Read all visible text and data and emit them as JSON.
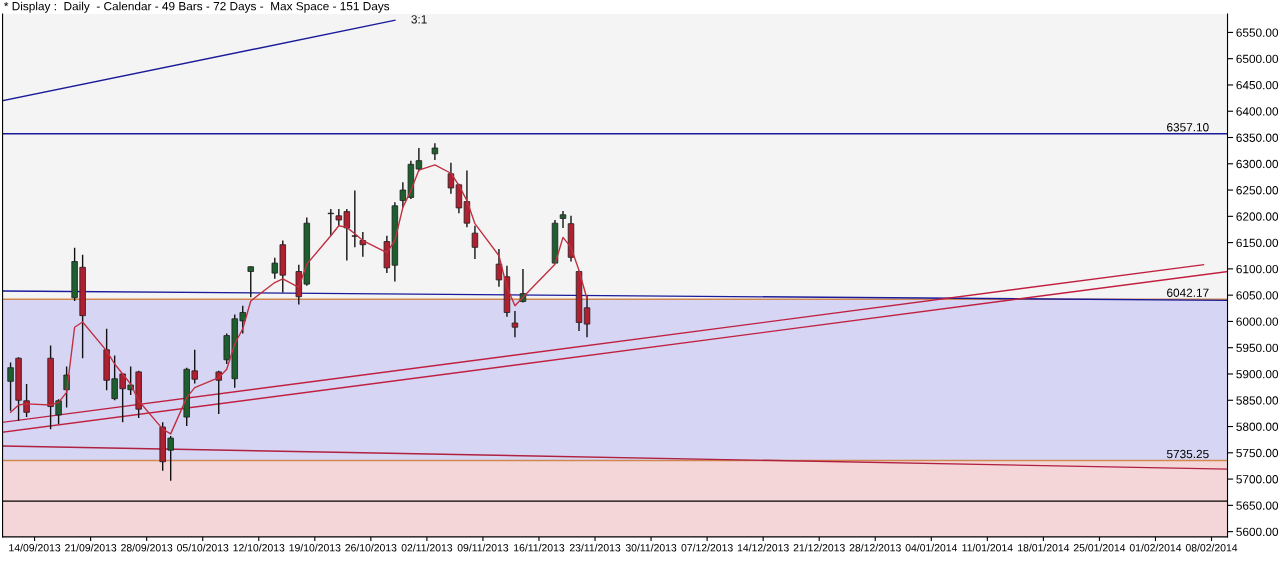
{
  "chart_data": {
    "type": "candlestick",
    "title": "* Display :  Daily  - Calendar - 49 Bars - 72 Days -  Max Space - 151 Days",
    "x": [
      "2013-09-11",
      "2013-09-12",
      "2013-09-13",
      "2013-09-16",
      "2013-09-17",
      "2013-09-18",
      "2013-09-19",
      "2013-09-20",
      "2013-09-23",
      "2013-09-24",
      "2013-09-25",
      "2013-09-26",
      "2013-09-27",
      "2013-09-30",
      "2013-10-01",
      "2013-10-03",
      "2013-10-04",
      "2013-10-07",
      "2013-10-08",
      "2013-10-09",
      "2013-10-10",
      "2013-10-11",
      "2013-10-14",
      "2013-10-15",
      "2013-10-17",
      "2013-10-18",
      "2013-10-21",
      "2013-10-22",
      "2013-10-23",
      "2013-10-24",
      "2013-10-25",
      "2013-10-28",
      "2013-10-29",
      "2013-10-30",
      "2013-10-31",
      "2013-11-01",
      "2013-11-03",
      "2013-11-05",
      "2013-11-06",
      "2013-11-07",
      "2013-11-08",
      "2013-11-11",
      "2013-11-12",
      "2013-11-13",
      "2013-11-14",
      "2013-11-18",
      "2013-11-19",
      "2013-11-20",
      "2013-11-21",
      "2013-11-22"
    ],
    "ohlc": [
      [
        5886,
        5922,
        5830,
        5912
      ],
      [
        5930,
        5932,
        5811,
        5850
      ],
      [
        5849,
        5881,
        5818,
        5827
      ],
      [
        5930,
        5954,
        5795,
        5838
      ],
      [
        5822,
        5852,
        5805,
        5849
      ],
      [
        5870,
        5914,
        5836,
        5898
      ],
      [
        6045,
        6140,
        6039,
        6114
      ],
      [
        6103,
        6127,
        5930,
        6011
      ],
      [
        5946,
        5986,
        5869,
        5888
      ],
      [
        5853,
        5935,
        5850,
        5891
      ],
      [
        5900,
        5902,
        5808,
        5872
      ],
      [
        5870,
        5914,
        5860,
        5879
      ],
      [
        5904,
        5906,
        5816,
        5833
      ],
      [
        5799,
        5808,
        5716,
        5733
      ],
      [
        5755,
        5782,
        5697,
        5778
      ],
      [
        5818,
        5912,
        5801,
        5909
      ],
      [
        5906,
        5946,
        5882,
        5890
      ],
      [
        5904,
        5906,
        5824,
        5888
      ],
      [
        5927,
        5977,
        5919,
        5973
      ],
      [
        5891,
        6013,
        5874,
        6005
      ],
      [
        6001,
        6030,
        5977,
        6017
      ],
      [
        6095,
        6105,
        6046,
        6104
      ],
      [
        6092,
        6121,
        6081,
        6111
      ],
      [
        6146,
        6154,
        6055,
        6088
      ],
      [
        6095,
        6108,
        6032,
        6047
      ],
      [
        6071,
        6198,
        6068,
        6187
      ],
      [
        6205,
        6214,
        6163,
        6206
      ],
      [
        6201,
        6214,
        6182,
        6193
      ],
      [
        6209,
        6214,
        6116,
        6178
      ],
      [
        6163,
        6249,
        6141,
        6162
      ],
      [
        6154,
        6170,
        6123,
        6146
      ],
      [
        6152,
        6163,
        6092,
        6102
      ],
      [
        6107,
        6227,
        6076,
        6220
      ],
      [
        6230,
        6265,
        6217,
        6250
      ],
      [
        6236,
        6306,
        6233,
        6299
      ],
      [
        6290,
        6330,
        6286,
        6306
      ],
      [
        6319,
        6339,
        6307,
        6330
      ],
      [
        6281,
        6302,
        6243,
        6254
      ],
      [
        6260,
        6262,
        6206,
        6216
      ],
      [
        6228,
        6287,
        6179,
        6187
      ],
      [
        6168,
        6182,
        6119,
        6141
      ],
      [
        6109,
        6138,
        6066,
        6079
      ],
      [
        6085,
        6106,
        6009,
        6017
      ],
      [
        5997,
        6020,
        5970,
        5989
      ],
      [
        6038,
        6100,
        6036,
        6053
      ],
      [
        6111,
        6193,
        6110,
        6187
      ],
      [
        6196,
        6210,
        6178,
        6203
      ],
      [
        6186,
        6201,
        6114,
        6122
      ],
      [
        6095,
        6097,
        5982,
        5998
      ],
      [
        6026,
        6049,
        5970,
        5995
      ]
    ],
    "colors": [
      "#1f5f2f",
      "#b02030",
      "#b02030",
      "#b02030",
      "#1f5f2f",
      "#1f5f2f",
      "#1f5f2f",
      "#b02030",
      "#b02030",
      "#1f5f2f",
      "#b02030",
      "#1f5f2f",
      "#b02030",
      "#b02030",
      "#1f5f2f",
      "#1f5f2f",
      "#b02030",
      "#b02030",
      "#1f5f2f",
      "#1f5f2f",
      "#1f5f2f",
      "#1f5f2f",
      "#1f5f2f",
      "#b02030",
      "#b02030",
      "#1f5f2f",
      "#1f5f2f",
      "#b02030",
      "#b02030",
      "#b02030",
      "#b02030",
      "#b02030",
      "#1f5f2f",
      "#1f5f2f",
      "#1f5f2f",
      "#1f5f2f",
      "#1f5f2f",
      "#b02030",
      "#b02030",
      "#b02030",
      "#b02030",
      "#b02030",
      "#b02030",
      "#b02030",
      "#1f5f2f",
      "#1f5f2f",
      "#1f5f2f",
      "#b02030",
      "#b02030",
      "#b02030"
    ],
    "series": [
      {
        "type": "line",
        "color": "#c03040",
        "x": [
          "2013-09-11",
          "2013-09-12",
          "2013-09-13",
          "2013-09-16",
          "2013-09-17",
          "2013-09-18",
          "2013-09-19",
          "2013-09-20",
          "2013-09-23",
          "2013-09-24",
          "2013-09-25",
          "2013-09-26",
          "2013-09-27",
          "2013-09-30",
          "2013-10-01",
          "2013-10-03",
          "2013-10-04",
          "2013-10-07",
          "2013-10-08",
          "2013-10-09",
          "2013-10-10",
          "2013-10-11",
          "2013-10-14",
          "2013-10-15",
          "2013-10-17",
          "2013-10-18",
          "2013-10-21",
          "2013-10-22",
          "2013-10-23",
          "2013-10-24",
          "2013-10-25",
          "2013-10-28",
          "2013-10-29",
          "2013-10-30",
          "2013-10-31",
          "2013-11-01",
          "2013-11-03",
          "2013-11-05",
          "2013-11-06",
          "2013-11-07",
          "2013-11-08",
          "2013-11-11",
          "2013-11-12",
          "2013-11-13",
          "2013-11-14",
          "2013-11-18",
          "2013-11-19",
          "2013-11-20",
          "2013-11-21",
          "2013-11-22"
        ],
        "values": [
          5827,
          5841,
          5843,
          5841,
          5846,
          5865,
          5989,
          5999,
          5944,
          5919,
          5900,
          5881,
          5849,
          5795,
          5786,
          5855,
          5874,
          5893,
          5909,
          5957,
          5986,
          6039,
          6074,
          6081,
          6065,
          6109,
          6163,
          6182,
          6179,
          6167,
          6154,
          6131,
          6154,
          6217,
          6249,
          6288,
          6298,
          6282,
          6259,
          6230,
          6186,
          6125,
          6065,
          6030,
          6046,
          6109,
          6160,
          6141,
          6097,
          6043
        ]
      },
      {
        "type": "line",
        "name": "3:1",
        "color": "#1a1a9a",
        "x": [
          "2013-09-10",
          "2013-10-29"
        ],
        "values": [
          6420,
          6573
        ]
      },
      {
        "type": "line",
        "color": "#1a1a9a",
        "x": [
          "2013-09-10",
          "2014-02-10"
        ],
        "values": [
          6058,
          6040
        ]
      },
      {
        "type": "line",
        "color": "#b02040",
        "x": [
          "2013-09-10",
          "2014-02-10"
        ],
        "values": [
          5763,
          5719
        ]
      },
      {
        "type": "line",
        "color": "#c02040",
        "x": [
          "2013-09-10",
          "2014-02-10"
        ],
        "values": [
          5789,
          6095
        ]
      },
      {
        "type": "line",
        "color": "#c02040",
        "x": [
          "2013-09-10",
          "2014-02-07"
        ],
        "values": [
          5808,
          6108
        ]
      }
    ],
    "bands": [
      {
        "axis": "y",
        "from": 5735.25,
        "to": 6042.17,
        "color": "#d6d6f4"
      },
      {
        "axis": "y",
        "from": 5590,
        "to": 5735.25,
        "color": "#f5d6d8"
      }
    ],
    "ref_lines": [
      {
        "axis": "y",
        "value": 6357.1,
        "color": "#1a1a9a",
        "label": "6357.10"
      },
      {
        "axis": "y",
        "value": 6042.17,
        "color": "#d08850",
        "label": "6042.17"
      },
      {
        "axis": "y",
        "value": 5735.25,
        "color": "#d08850",
        "label": "5735.25"
      },
      {
        "axis": "y",
        "value": 5658,
        "color": "#000000"
      }
    ],
    "xlim": [
      "2013-09-10",
      "2014-02-10"
    ],
    "xticks": [
      {
        "value": "2013-09-14",
        "label": "14/09/2013"
      },
      {
        "value": "2013-09-21",
        "label": "21/09/2013"
      },
      {
        "value": "2013-09-28",
        "label": "28/09/2013"
      },
      {
        "value": "2013-10-05",
        "label": "05/10/2013"
      },
      {
        "value": "2013-10-12",
        "label": "12/10/2013"
      },
      {
        "value": "2013-10-19",
        "label": "19/10/2013"
      },
      {
        "value": "2013-10-26",
        "label": "26/10/2013"
      },
      {
        "value": "2013-11-02",
        "label": "02/11/2013"
      },
      {
        "value": "2013-11-09",
        "label": "09/11/2013"
      },
      {
        "value": "2013-11-16",
        "label": "16/11/2013"
      },
      {
        "value": "2013-11-23",
        "label": "23/11/2013"
      },
      {
        "value": "2013-11-30",
        "label": "30/11/2013"
      },
      {
        "value": "2013-12-07",
        "label": "07/12/2013"
      },
      {
        "value": "2013-12-14",
        "label": "14/12/2013"
      },
      {
        "value": "2013-12-21",
        "label": "21/12/2013"
      },
      {
        "value": "2013-12-28",
        "label": "28/12/2013"
      },
      {
        "value": "2014-01-04",
        "label": "04/01/2014"
      },
      {
        "value": "2014-01-11",
        "label": "11/01/2014"
      },
      {
        "value": "2014-01-18",
        "label": "18/01/2014"
      },
      {
        "value": "2014-01-25",
        "label": "25/01/2014"
      },
      {
        "value": "2014-02-01",
        "label": "01/02/2014"
      },
      {
        "value": "2014-02-08",
        "label": "08/02/2014"
      }
    ],
    "ylim": [
      5590,
      6585
    ],
    "yticks": [
      {
        "value": 5600,
        "label": "5600.00"
      },
      {
        "value": 5650,
        "label": "5650.00"
      },
      {
        "value": 5700,
        "label": "5700.00"
      },
      {
        "value": 5750,
        "label": "5750.00"
      },
      {
        "value": 5800,
        "label": "5800.00"
      },
      {
        "value": 5850,
        "label": "5850.00"
      },
      {
        "value": 5900,
        "label": "5900.00"
      },
      {
        "value": 5950,
        "label": "5950.00"
      },
      {
        "value": 6000,
        "label": "6000.00"
      },
      {
        "value": 6050,
        "label": "6050.00"
      },
      {
        "value": 6100,
        "label": "6100.00"
      },
      {
        "value": 6150,
        "label": "6150.00"
      },
      {
        "value": 6200,
        "label": "6200.00"
      },
      {
        "value": 6250,
        "label": "6250.00"
      },
      {
        "value": 6300,
        "label": "6300.00"
      },
      {
        "value": 6350,
        "label": "6350.00"
      },
      {
        "value": 6400,
        "label": "6400.00"
      },
      {
        "value": 6450,
        "label": "6450.00"
      },
      {
        "value": 6500,
        "label": "6500.00"
      },
      {
        "value": 6550,
        "label": "6550.00"
      }
    ],
    "grid": false,
    "legend": false
  }
}
